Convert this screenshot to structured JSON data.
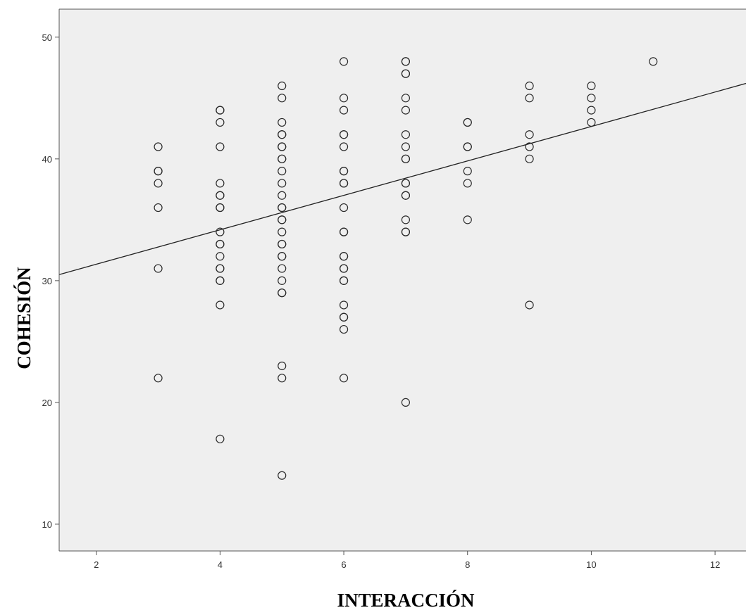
{
  "chart_data": {
    "type": "scatter",
    "title": "",
    "xlabel": "INTERACCIÓN",
    "ylabel": "COHESIÓN",
    "xlim": [
      1.4,
      12.5
    ],
    "ylim": [
      7.8,
      52.3
    ],
    "x_ticks": [
      2,
      4,
      6,
      8,
      10,
      12
    ],
    "y_ticks": [
      10,
      20,
      30,
      40,
      50
    ],
    "grid": false,
    "legend": "none",
    "colors": {
      "plot_background": "#efefef",
      "marker_stroke": "#2a2a2a",
      "line": "#222222",
      "frame": "#555555"
    },
    "points": [
      {
        "x": 3,
        "y": 41
      },
      {
        "x": 3,
        "y": 39
      },
      {
        "x": 3,
        "y": 39
      },
      {
        "x": 3,
        "y": 38
      },
      {
        "x": 3,
        "y": 36
      },
      {
        "x": 3,
        "y": 31
      },
      {
        "x": 3,
        "y": 22
      },
      {
        "x": 4,
        "y": 44
      },
      {
        "x": 4,
        "y": 44
      },
      {
        "x": 4,
        "y": 43
      },
      {
        "x": 4,
        "y": 41
      },
      {
        "x": 4,
        "y": 38
      },
      {
        "x": 4,
        "y": 37
      },
      {
        "x": 4,
        "y": 37
      },
      {
        "x": 4,
        "y": 36
      },
      {
        "x": 4,
        "y": 36
      },
      {
        "x": 4,
        "y": 34
      },
      {
        "x": 4,
        "y": 33
      },
      {
        "x": 4,
        "y": 33
      },
      {
        "x": 4,
        "y": 32
      },
      {
        "x": 4,
        "y": 31
      },
      {
        "x": 4,
        "y": 31
      },
      {
        "x": 4,
        "y": 30
      },
      {
        "x": 4,
        "y": 30
      },
      {
        "x": 4,
        "y": 28
      },
      {
        "x": 4,
        "y": 17
      },
      {
        "x": 5,
        "y": 46
      },
      {
        "x": 5,
        "y": 45
      },
      {
        "x": 5,
        "y": 43
      },
      {
        "x": 5,
        "y": 42
      },
      {
        "x": 5,
        "y": 42
      },
      {
        "x": 5,
        "y": 41
      },
      {
        "x": 5,
        "y": 41
      },
      {
        "x": 5,
        "y": 40
      },
      {
        "x": 5,
        "y": 40
      },
      {
        "x": 5,
        "y": 39
      },
      {
        "x": 5,
        "y": 38
      },
      {
        "x": 5,
        "y": 37
      },
      {
        "x": 5,
        "y": 36
      },
      {
        "x": 5,
        "y": 36
      },
      {
        "x": 5,
        "y": 35
      },
      {
        "x": 5,
        "y": 35
      },
      {
        "x": 5,
        "y": 34
      },
      {
        "x": 5,
        "y": 33
      },
      {
        "x": 5,
        "y": 33
      },
      {
        "x": 5,
        "y": 32
      },
      {
        "x": 5,
        "y": 32
      },
      {
        "x": 5,
        "y": 31
      },
      {
        "x": 5,
        "y": 30
      },
      {
        "x": 5,
        "y": 29
      },
      {
        "x": 5,
        "y": 29
      },
      {
        "x": 5,
        "y": 23
      },
      {
        "x": 5,
        "y": 22
      },
      {
        "x": 5,
        "y": 14
      },
      {
        "x": 6,
        "y": 48
      },
      {
        "x": 6,
        "y": 45
      },
      {
        "x": 6,
        "y": 44
      },
      {
        "x": 6,
        "y": 42
      },
      {
        "x": 6,
        "y": 42
      },
      {
        "x": 6,
        "y": 41
      },
      {
        "x": 6,
        "y": 39
      },
      {
        "x": 6,
        "y": 39
      },
      {
        "x": 6,
        "y": 38
      },
      {
        "x": 6,
        "y": 38
      },
      {
        "x": 6,
        "y": 36
      },
      {
        "x": 6,
        "y": 34
      },
      {
        "x": 6,
        "y": 34
      },
      {
        "x": 6,
        "y": 32
      },
      {
        "x": 6,
        "y": 32
      },
      {
        "x": 6,
        "y": 31
      },
      {
        "x": 6,
        "y": 31
      },
      {
        "x": 6,
        "y": 30
      },
      {
        "x": 6,
        "y": 30
      },
      {
        "x": 6,
        "y": 28
      },
      {
        "x": 6,
        "y": 27
      },
      {
        "x": 6,
        "y": 27
      },
      {
        "x": 6,
        "y": 26
      },
      {
        "x": 6,
        "y": 22
      },
      {
        "x": 7,
        "y": 48
      },
      {
        "x": 7,
        "y": 48
      },
      {
        "x": 7,
        "y": 47
      },
      {
        "x": 7,
        "y": 47
      },
      {
        "x": 7,
        "y": 45
      },
      {
        "x": 7,
        "y": 44
      },
      {
        "x": 7,
        "y": 42
      },
      {
        "x": 7,
        "y": 41
      },
      {
        "x": 7,
        "y": 40
      },
      {
        "x": 7,
        "y": 40
      },
      {
        "x": 7,
        "y": 38
      },
      {
        "x": 7,
        "y": 38
      },
      {
        "x": 7,
        "y": 37
      },
      {
        "x": 7,
        "y": 37
      },
      {
        "x": 7,
        "y": 35
      },
      {
        "x": 7,
        "y": 34
      },
      {
        "x": 7,
        "y": 34
      },
      {
        "x": 7,
        "y": 20
      },
      {
        "x": 8,
        "y": 43
      },
      {
        "x": 8,
        "y": 43
      },
      {
        "x": 8,
        "y": 41
      },
      {
        "x": 8,
        "y": 41
      },
      {
        "x": 8,
        "y": 39
      },
      {
        "x": 8,
        "y": 38
      },
      {
        "x": 8,
        "y": 35
      },
      {
        "x": 9,
        "y": 46
      },
      {
        "x": 9,
        "y": 45
      },
      {
        "x": 9,
        "y": 42
      },
      {
        "x": 9,
        "y": 41
      },
      {
        "x": 9,
        "y": 40
      },
      {
        "x": 9,
        "y": 28
      },
      {
        "x": 10,
        "y": 46
      },
      {
        "x": 10,
        "y": 45
      },
      {
        "x": 10,
        "y": 44
      },
      {
        "x": 10,
        "y": 43
      },
      {
        "x": 11,
        "y": 48
      }
    ],
    "fit_line": {
      "x1": 1.4,
      "y1": 30.5,
      "x2": 12.5,
      "y2": 46.2
    }
  }
}
